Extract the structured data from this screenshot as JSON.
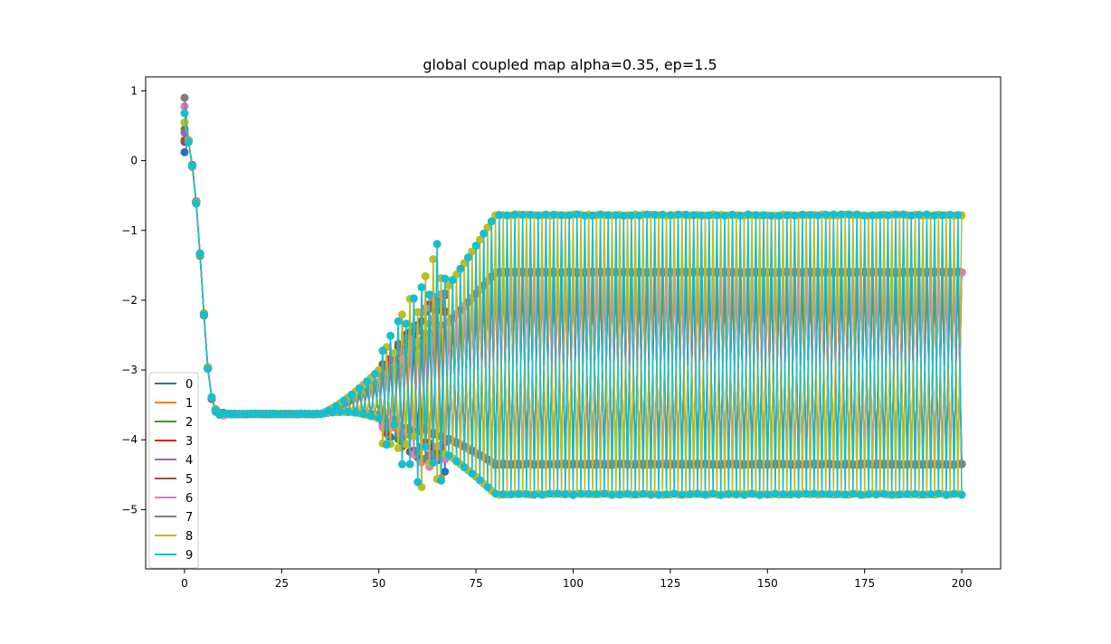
{
  "chart_data": {
    "type": "line",
    "title": "global coupled map alpha=0.35, ep=1.5",
    "xlabel": "",
    "ylabel": "",
    "xlim": [
      -10,
      210
    ],
    "ylim": [
      -5.85,
      1.2
    ],
    "xticks": [
      0,
      25,
      50,
      75,
      100,
      125,
      150,
      175,
      200
    ],
    "xtick_labels": [
      "0",
      "25",
      "50",
      "75",
      "100",
      "125",
      "150",
      "175",
      "200"
    ],
    "yticks": [
      1,
      0,
      -1,
      -2,
      -3,
      -4,
      -5
    ],
    "ytick_labels": [
      "1",
      "0",
      "−1",
      "−2",
      "−3",
      "−4",
      "−5"
    ],
    "grid": false,
    "legend_position": "lower-left",
    "markers": "circle",
    "x_range": [
      0,
      200
    ],
    "transient_initial_values": [
      0.12,
      0.3,
      0.45,
      0.27,
      0.4,
      0.28,
      0.78,
      0.9,
      0.55,
      0.68
    ],
    "transient_early_path": [
      {
        "x": 1,
        "y": 0.28
      },
      {
        "x": 2,
        "y": -0.08
      },
      {
        "x": 3,
        "y": -0.6
      },
      {
        "x": 4,
        "y": -1.35
      },
      {
        "x": 5,
        "y": -2.2
      },
      {
        "x": 6,
        "y": -2.97
      },
      {
        "x": 7,
        "y": -3.4
      },
      {
        "x": 8,
        "y": -3.58
      },
      {
        "x": 9,
        "y": -3.62
      },
      {
        "x": 10,
        "y": -3.63
      }
    ],
    "plateau_value": -3.63,
    "divergence_start_x": 35,
    "settle_x": 80,
    "series": [
      {
        "name": "0",
        "color": "#1f77b4",
        "attractor": [
          -1.6,
          -4.35
        ]
      },
      {
        "name": "1",
        "color": "#ff7f0e",
        "attractor": [
          -1.6,
          -4.35
        ]
      },
      {
        "name": "2",
        "color": "#2ca02c",
        "attractor": [
          -1.6,
          -4.35
        ]
      },
      {
        "name": "3",
        "color": "#d62728",
        "attractor": [
          -1.6,
          -4.35
        ]
      },
      {
        "name": "4",
        "color": "#9467bd",
        "attractor": [
          -1.6,
          -4.35
        ]
      },
      {
        "name": "5",
        "color": "#8c564b",
        "attractor": [
          -1.6,
          -4.35
        ]
      },
      {
        "name": "6",
        "color": "#e377c2",
        "attractor": [
          -1.6,
          -4.35
        ]
      },
      {
        "name": "7",
        "color": "#7f7f7f",
        "attractor": [
          -1.6,
          -4.35
        ]
      },
      {
        "name": "8",
        "color": "#bcbd22",
        "attractor": [
          -0.78,
          -4.78
        ]
      },
      {
        "name": "9",
        "color": "#17becf",
        "attractor": [
          -0.78,
          -4.78
        ]
      }
    ]
  }
}
